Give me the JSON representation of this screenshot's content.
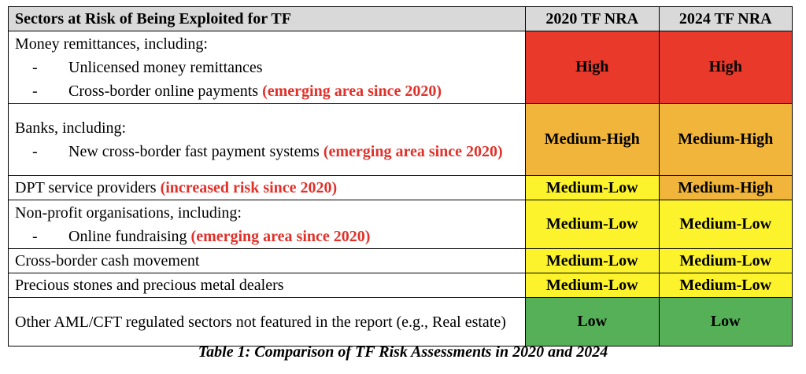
{
  "colors": {
    "high": "#e8392b",
    "medium_high": "#f0b53a",
    "medium_low": "#fcf32c",
    "low": "#56b058",
    "header": "#d9d9d9",
    "emphasis_red": "#e0312a"
  },
  "headers": {
    "sector": "Sectors at Risk of Being Exploited for TF",
    "y2020": "2020 TF NRA",
    "y2024": "2024 TF NRA"
  },
  "rows": [
    {
      "lead": "Money remittances, including:",
      "subs": [
        {
          "dash": "-",
          "text": "Unlicensed money remittances",
          "note": ""
        },
        {
          "dash": "-",
          "text": "Cross-border online payments ",
          "note": "(emerging area since 2020)"
        }
      ],
      "r2020": "High",
      "c2020": "high",
      "r2024": "High",
      "c2024": "high"
    },
    {
      "lead": "Banks, including:",
      "subs": [
        {
          "dash": "-",
          "text": "New cross-border fast payment systems ",
          "note": "(emerging area since 2020)"
        }
      ],
      "r2020": "Medium-High",
      "c2020": "medium_high",
      "r2024": "Medium-High",
      "c2024": "medium_high"
    },
    {
      "lead": "DPT service providers ",
      "lead_note": "(increased risk since 2020)",
      "subs": [],
      "r2020": "Medium-Low",
      "c2020": "medium_low",
      "r2024": "Medium-High",
      "c2024": "medium_high"
    },
    {
      "lead": "Non-profit organisations, including:",
      "subs": [
        {
          "dash": "-",
          "text": "Online fundraising ",
          "note": "(emerging area since 2020)"
        }
      ],
      "r2020": "Medium-Low",
      "c2020": "medium_low",
      "r2024": "Medium-Low",
      "c2024": "medium_low"
    },
    {
      "lead": "Cross-border cash movement",
      "subs": [],
      "r2020": "Medium-Low",
      "c2020": "medium_low",
      "r2024": "Medium-Low",
      "c2024": "medium_low"
    },
    {
      "lead": "Precious stones and precious metal dealers",
      "subs": [],
      "r2020": "Medium-Low",
      "c2020": "medium_low",
      "r2024": "Medium-Low",
      "c2024": "medium_low"
    },
    {
      "lead": "Other AML/CFT regulated sectors not featured in the report (e.g., Real estate)",
      "subs": [],
      "r2020": "Low",
      "c2020": "low",
      "r2024": "Low",
      "c2024": "low"
    }
  ],
  "caption": "Table 1: Comparison of TF Risk Assessments in 2020 and 2024"
}
